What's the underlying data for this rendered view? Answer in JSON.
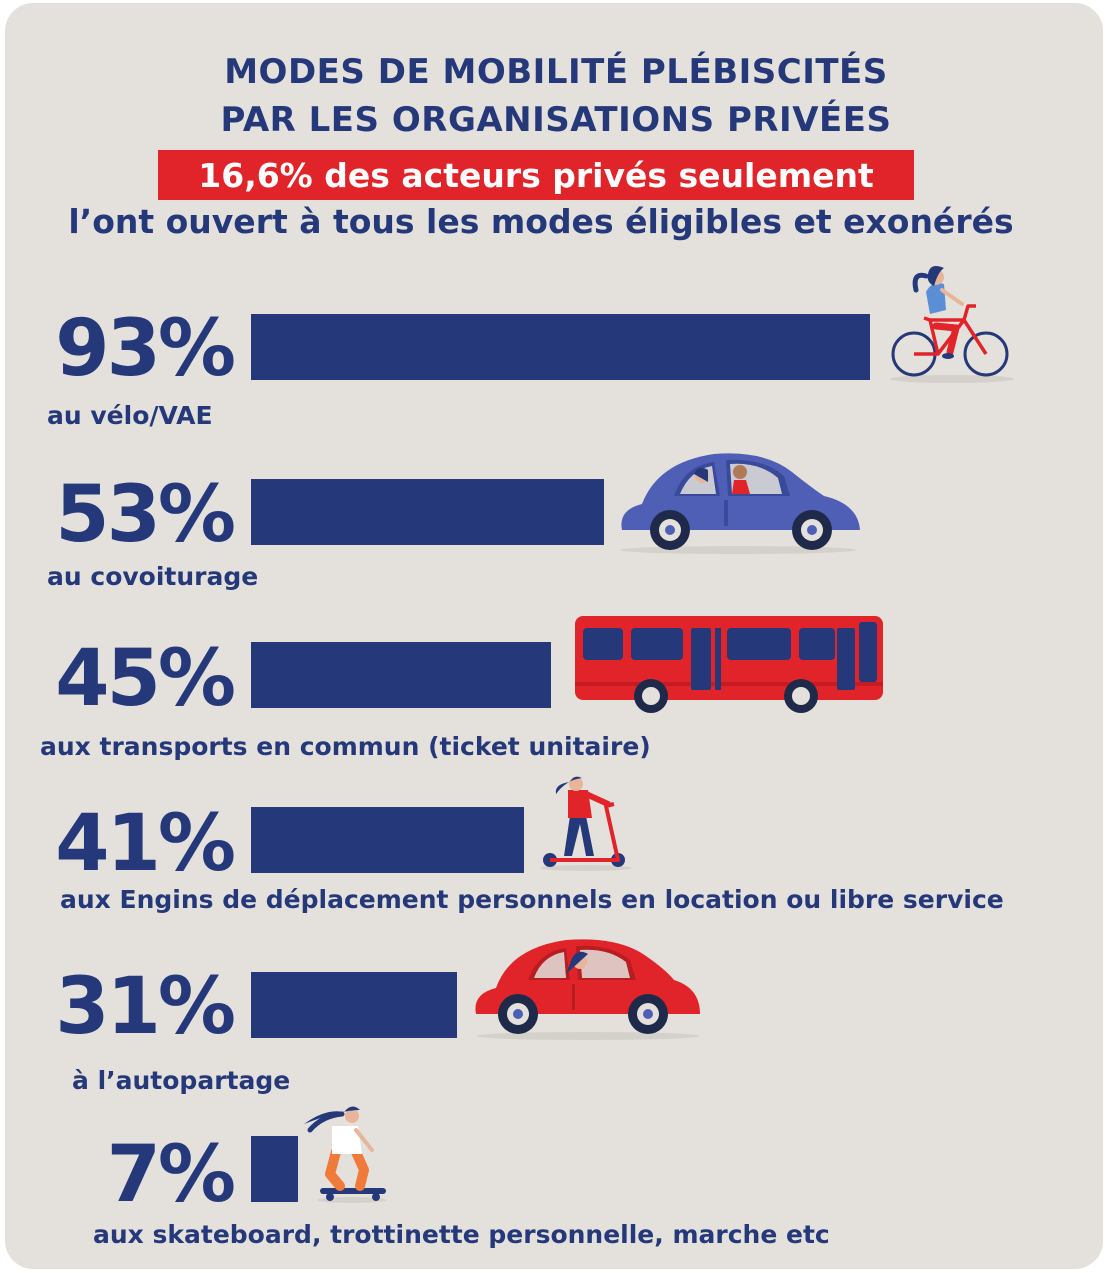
{
  "colors": {
    "navy": "#25397a",
    "red": "#e0242a",
    "background": "#e4e1dc"
  },
  "header": {
    "title_line1": "MODES DE MOBILITÉ PLÉBISCITÉS",
    "title_line2": "PAR LES ORGANISATIONS PRIVÉES",
    "highlight": "16,6% des acteurs privés seulement",
    "subtitle": "l’ont ouvert à tous les modes éligibles et exonérés"
  },
  "chart_data": {
    "type": "bar",
    "orientation": "horizontal",
    "title": "MODES DE MOBILITÉ PLÉBISCITÉS PAR LES ORGANISATIONS PRIVÉES",
    "categories": [
      "au vélo/VAE",
      "au covoiturage",
      "aux transports en commun (ticket unitaire)",
      "aux Engins de déplacement personnels en location ou libre service",
      "à l’autopartage",
      "aux skateboard, trottinette personnelle, marche etc"
    ],
    "values": [
      93,
      53,
      45,
      41,
      31,
      7
    ],
    "value_labels": [
      "93%",
      "53%",
      "45%",
      "41%",
      "31%",
      "7%"
    ],
    "xlim": [
      0,
      100
    ],
    "grid": false,
    "icons": [
      "cyclist-icon",
      "blue-car-icon",
      "red-bus-icon",
      "scooter-rider-icon",
      "red-car-icon",
      "skateboarder-icon"
    ]
  }
}
